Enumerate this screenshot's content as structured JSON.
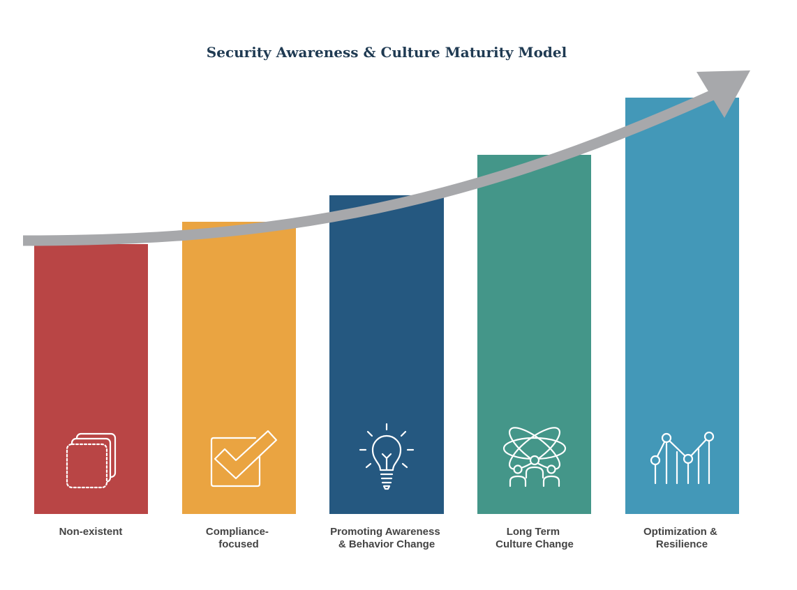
{
  "title": "Security Awareness & Culture Maturity Model",
  "stages": [
    {
      "label_lines": [
        "Non-existent"
      ],
      "color": "#b94545",
      "icon": "blank-pages-icon"
    },
    {
      "label_lines": [
        "Compliance-",
        "focused"
      ],
      "color": "#eaa441",
      "icon": "checkbox-icon"
    },
    {
      "label_lines": [
        "Promoting Awareness",
        "& Behavior Change"
      ],
      "color": "#255880",
      "icon": "lightbulb-icon"
    },
    {
      "label_lines": [
        "Long Term",
        "Culture Change"
      ],
      "color": "#449689",
      "icon": "people-network-icon"
    },
    {
      "label_lines": [
        "Optimization &",
        "Resilience"
      ],
      "color": "#4398b8",
      "icon": "line-chart-icon"
    }
  ],
  "colors": {
    "title": "#1f3a52",
    "arrow": "#a7a8ab",
    "label": "#444444"
  }
}
